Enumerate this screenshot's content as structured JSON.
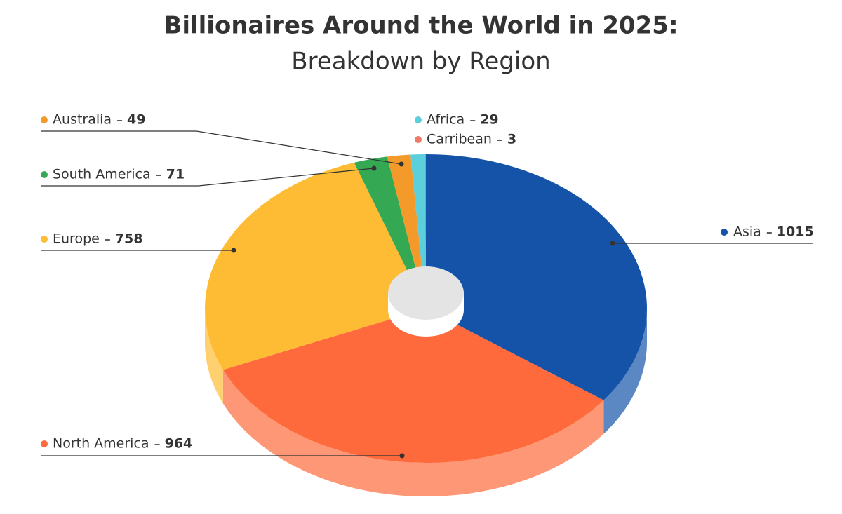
{
  "chart_data": {
    "type": "pie",
    "title": "Billionaires Around the World in 2025:",
    "subtitle": "Breakdown by Region",
    "categories": [
      "Asia",
      "North America",
      "Europe",
      "South America",
      "Australia",
      "Africa",
      "Carribean"
    ],
    "values": [
      1015,
      964,
      758,
      71,
      49,
      29,
      3
    ],
    "colors": [
      "#1453a8",
      "#fe6a3b",
      "#fdbc33",
      "#34a853",
      "#f39a2b",
      "#5bcfdc",
      "#f07a6a"
    ]
  }
}
